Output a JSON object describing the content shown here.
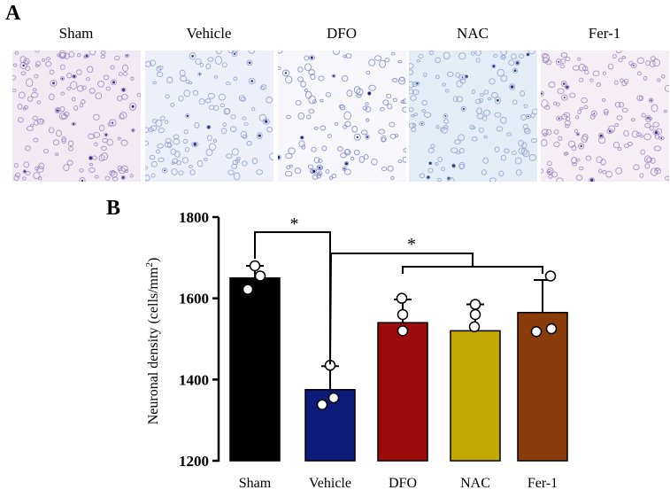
{
  "panels": {
    "a": "A",
    "b": "B"
  },
  "image_panels": [
    {
      "label": "Sham",
      "bg": "#f1eaf3",
      "cell": "#9a86bf",
      "dark": "#3c3380",
      "density": 150
    },
    {
      "label": "Vehicle",
      "bg": "#edf0f8",
      "cell": "#8f9cce",
      "dark": "#2f3a8a",
      "density": 120
    },
    {
      "label": "DFO",
      "bg": "#f6f6fb",
      "cell": "#7c86c6",
      "dark": "#1b2470",
      "density": 120
    },
    {
      "label": "NAC",
      "bg": "#e4ecf5",
      "cell": "#8fa3cc",
      "dark": "#2c3e80",
      "density": 130
    },
    {
      "label": "Fer-1",
      "bg": "#f6eef5",
      "cell": "#9c82bd",
      "dark": "#473487",
      "density": 150
    }
  ],
  "chart_data": {
    "type": "bar",
    "categories": [
      "Sham",
      "Vehicle",
      "DFO",
      "NAC",
      "Fer-1"
    ],
    "values": [
      1650,
      1375,
      1540,
      1520,
      1565
    ],
    "errors": [
      30,
      58,
      57,
      65,
      80
    ],
    "points": [
      [
        1680,
        1655,
        1622
      ],
      [
        1435,
        1355,
        1338
      ],
      [
        1600,
        1560,
        1520
      ],
      [
        1585,
        1560,
        1530
      ],
      [
        1655,
        1525,
        1518
      ]
    ],
    "colors": [
      "#000000",
      "#0c1a7a",
      "#9c0a0a",
      "#c2a800",
      "#8a3d0a"
    ],
    "ylabel": "Neuronal density (cells/mm",
    "ylabel_sup": "2",
    "ylabel_close": ")",
    "ylim": [
      1200,
      1800
    ],
    "yticks": [
      1200,
      1400,
      1600,
      1800
    ],
    "ytick_labels": [
      "1200",
      "1400",
      "1600",
      "1800"
    ],
    "significance": [
      {
        "label": "*",
        "from": "Sham",
        "to": "Vehicle"
      },
      {
        "label": "*",
        "from": "Vehicle",
        "to": [
          "DFO",
          "NAC",
          "Fer-1"
        ]
      }
    ]
  }
}
